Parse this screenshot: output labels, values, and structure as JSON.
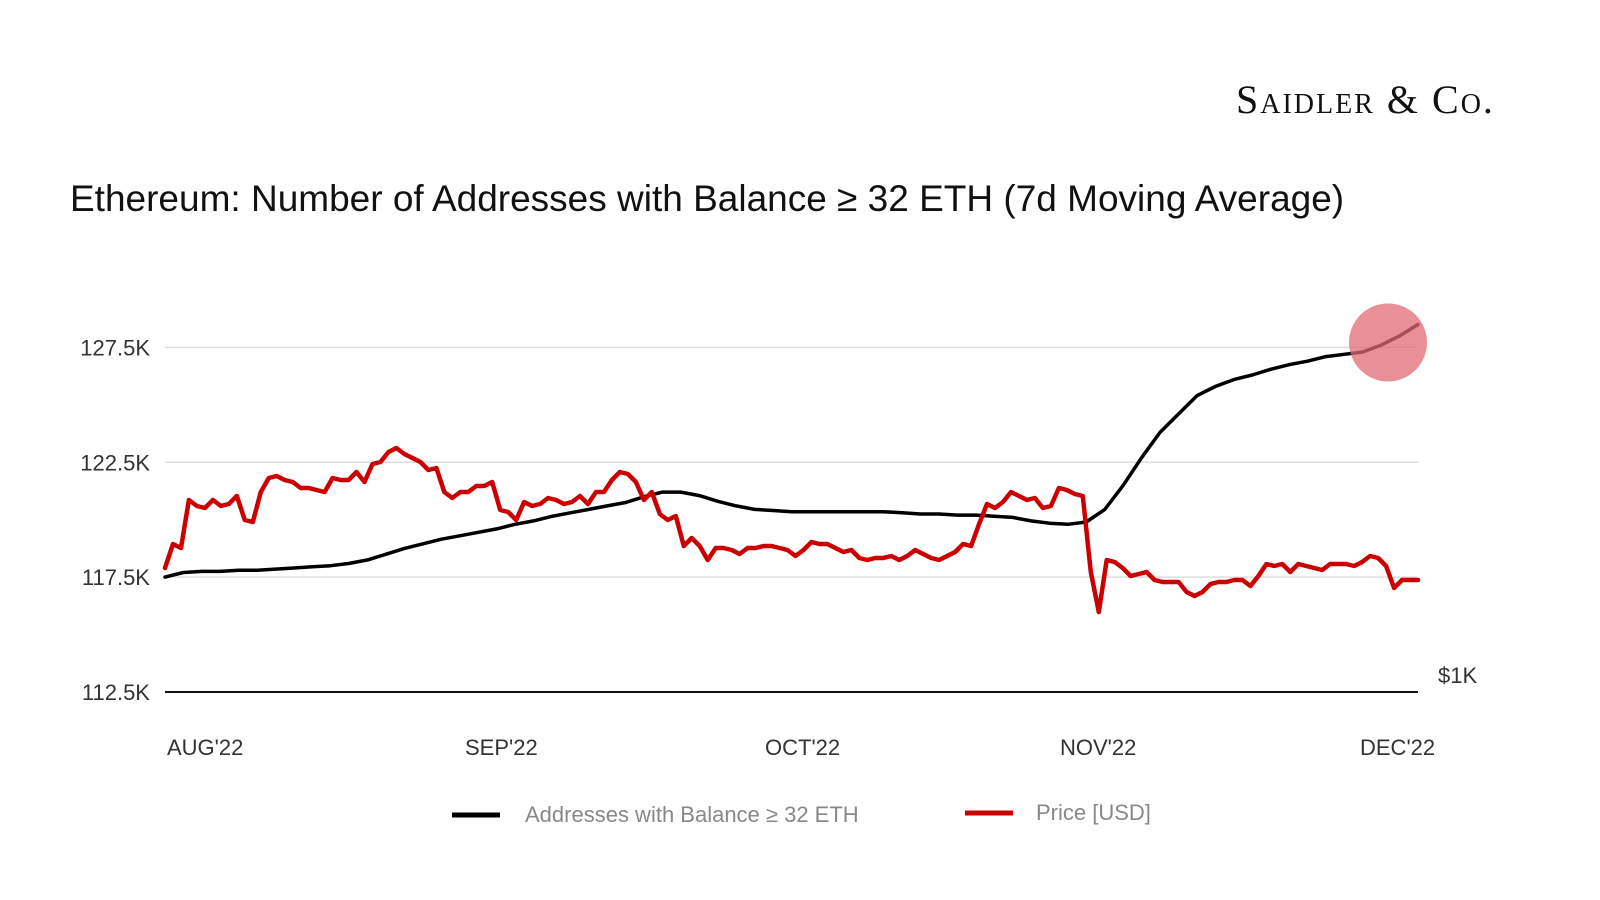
{
  "brand": {
    "logo_text": "Saidler & Co."
  },
  "chart_data": {
    "type": "line",
    "title": "Ethereum: Number of Addresses with Balance ≥ 32 ETH (7d Moving Average)",
    "xlabel": "",
    "ylabel": "",
    "y_ticks": [
      "112.5K",
      "117.5K",
      "122.5K",
      "127.5K"
    ],
    "y_tick_values": [
      112500,
      117500,
      122500,
      127500
    ],
    "ylim": [
      112500,
      130000
    ],
    "right_axis_label": "$1K",
    "x_ticks": [
      "AUG'22",
      "SEP'22",
      "OCT'22",
      "NOV'22",
      "DEC'22"
    ],
    "grid": true,
    "legend_position": "bottom",
    "highlight": {
      "series": "Addresses with Balance ≥ 32 ETH",
      "point": "end",
      "color": "#e06b73"
    },
    "series": [
      {
        "name": "Addresses with Balance ≥ 32 ETH",
        "color": "#000000",
        "axis": "left",
        "values": [
          117500,
          117700,
          117750,
          117750,
          117800,
          117800,
          117850,
          117900,
          117950,
          118000,
          118100,
          118250,
          118500,
          118750,
          118950,
          119150,
          119300,
          119450,
          119600,
          119800,
          119950,
          120150,
          120300,
          120450,
          120600,
          120750,
          121000,
          121200,
          121200,
          121050,
          120800,
          120600,
          120450,
          120400,
          120350,
          120350,
          120350,
          120350,
          120350,
          120350,
          120300,
          120250,
          120250,
          120200,
          120200,
          120150,
          120100,
          119950,
          119850,
          119800,
          119900,
          120450,
          121500,
          122700,
          123800,
          124600,
          125400,
          125800,
          126100,
          126300,
          126550,
          126750,
          126900,
          127100,
          127200,
          127300,
          127600,
          128000,
          128500
        ]
      },
      {
        "name": "Price [USD]",
        "color": "#cc0000",
        "axis": "right",
        "values": [
          1620,
          1740,
          1720,
          1960,
          1930,
          1920,
          1960,
          1930,
          1940,
          1980,
          1860,
          1850,
          2000,
          2070,
          2080,
          2060,
          2050,
          2020,
          2020,
          2010,
          2000,
          2070,
          2060,
          2060,
          2100,
          2050,
          2140,
          2150,
          2200,
          2220,
          2190,
          2170,
          2150,
          2110,
          2120,
          2000,
          1970,
          2000,
          2000,
          2030,
          2030,
          2050,
          1910,
          1900,
          1860,
          1950,
          1930,
          1940,
          1970,
          1960,
          1940,
          1950,
          1980,
          1940,
          2000,
          2000,
          2060,
          2100,
          2090,
          2050,
          1960,
          2000,
          1890,
          1860,
          1880,
          1730,
          1770,
          1730,
          1660,
          1720,
          1720,
          1710,
          1690,
          1720,
          1720,
          1730,
          1730,
          1720,
          1710,
          1680,
          1710,
          1750,
          1740,
          1740,
          1720,
          1700,
          1710,
          1670,
          1660,
          1670,
          1670,
          1680,
          1660,
          1680,
          1710,
          1690,
          1670,
          1660,
          1680,
          1700,
          1740,
          1730,
          1840,
          1940,
          1920,
          1950,
          2000,
          1980,
          1960,
          1970,
          1920,
          1930,
          2020,
          2010,
          1990,
          1980,
          1600,
          1400,
          1660,
          1650,
          1620,
          1580,
          1590,
          1600,
          1560,
          1550,
          1550,
          1550,
          1500,
          1480,
          1500,
          1540,
          1550,
          1550,
          1560,
          1560,
          1530,
          1580,
          1640,
          1630,
          1640,
          1600,
          1640,
          1630,
          1620,
          1610,
          1640,
          1640,
          1640,
          1630,
          1650,
          1680,
          1670,
          1630,
          1520,
          1560,
          1560,
          1560
        ]
      }
    ]
  }
}
